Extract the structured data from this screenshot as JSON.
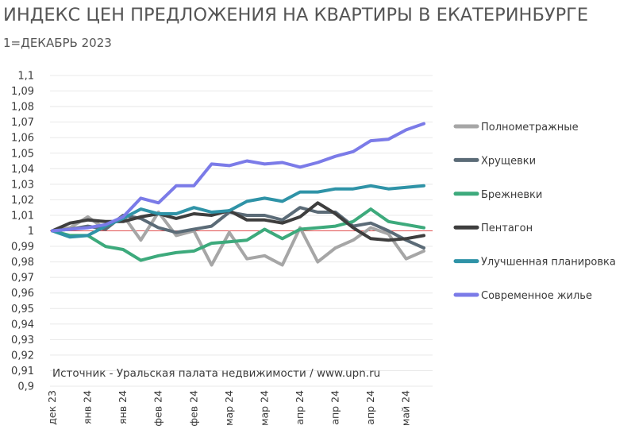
{
  "title": "ИНДЕКС ЦЕН ПРЕДЛОЖЕНИЯ НА КВАРТИРЫ В ЕКАТЕРИНБУРГЕ",
  "subtitle": "1=ДЕКАБРЬ 2023",
  "source": "Источник - Уральская палата недвижимости / www.upn.ru",
  "colors": {
    "reference_line": "#e05050",
    "grid": "#e8e8e8"
  },
  "chart_data": {
    "type": "line",
    "ylim": [
      0.9,
      1.1
    ],
    "y_ticks": [
      "0,9",
      "0,91",
      "0,92",
      "0,93",
      "0,94",
      "0,95",
      "0,96",
      "0,97",
      "0,98",
      "0,99",
      "1",
      "1,01",
      "1,02",
      "1,03",
      "1,04",
      "1,05",
      "1,06",
      "1,07",
      "1,08",
      "1,09",
      "1,1"
    ],
    "x_labels": [
      "дек 23",
      "янв 24",
      "янв 24",
      "фев 24",
      "фев 24",
      "мар 24",
      "мар 24",
      "апр 24",
      "апр 24",
      "апр 24",
      "май 24"
    ],
    "x_label_index": [
      0,
      2,
      4,
      6,
      8,
      10,
      12,
      14,
      16,
      18,
      20
    ],
    "n_points": 22,
    "reference_line": 1.0,
    "legend_position": "right",
    "series": [
      {
        "name": "Полнометражные",
        "color": "#a6a6a6",
        "values": [
          1.0,
          1.002,
          1.009,
          1.001,
          1.01,
          0.994,
          1.012,
          0.997,
          1.0,
          0.978,
          0.999,
          0.982,
          0.984,
          0.978,
          1.002,
          0.98,
          0.989,
          0.994,
          1.002,
          0.998,
          0.982,
          0.987
        ]
      },
      {
        "name": "Хрущевки",
        "color": "#5b6b77",
        "values": [
          1.0,
          1.001,
          1.003,
          1.001,
          1.01,
          1.008,
          1.002,
          0.999,
          1.001,
          1.003,
          1.012,
          1.01,
          1.01,
          1.007,
          1.015,
          1.012,
          1.012,
          1.003,
          1.005,
          1.0,
          0.994,
          0.989
        ]
      },
      {
        "name": "Брежневки",
        "color": "#3daa7c",
        "values": [
          1.0,
          0.997,
          0.997,
          0.99,
          0.988,
          0.981,
          0.984,
          0.986,
          0.987,
          0.992,
          0.993,
          0.994,
          1.001,
          0.995,
          1.001,
          1.002,
          1.003,
          1.006,
          1.014,
          1.006,
          1.004,
          1.002
        ]
      },
      {
        "name": "Пентагон",
        "color": "#3e3e3e",
        "values": [
          1.0,
          1.005,
          1.007,
          1.006,
          1.006,
          1.009,
          1.011,
          1.008,
          1.011,
          1.01,
          1.013,
          1.007,
          1.007,
          1.005,
          1.009,
          1.018,
          1.011,
          1.002,
          0.995,
          0.994,
          0.995,
          0.997
        ]
      },
      {
        "name": "Улучшенная планировка",
        "color": "#2f93a7",
        "values": [
          1.0,
          0.996,
          0.997,
          1.003,
          1.008,
          1.014,
          1.011,
          1.011,
          1.015,
          1.012,
          1.013,
          1.019,
          1.021,
          1.019,
          1.025,
          1.025,
          1.027,
          1.027,
          1.029,
          1.027,
          1.028,
          1.029
        ]
      },
      {
        "name": "Современное жилье",
        "color": "#7b7be8",
        "values": [
          1.0,
          1.001,
          1.002,
          1.004,
          1.009,
          1.021,
          1.018,
          1.029,
          1.029,
          1.043,
          1.042,
          1.045,
          1.043,
          1.044,
          1.041,
          1.044,
          1.048,
          1.051,
          1.058,
          1.059,
          1.065,
          1.069
        ]
      }
    ]
  }
}
